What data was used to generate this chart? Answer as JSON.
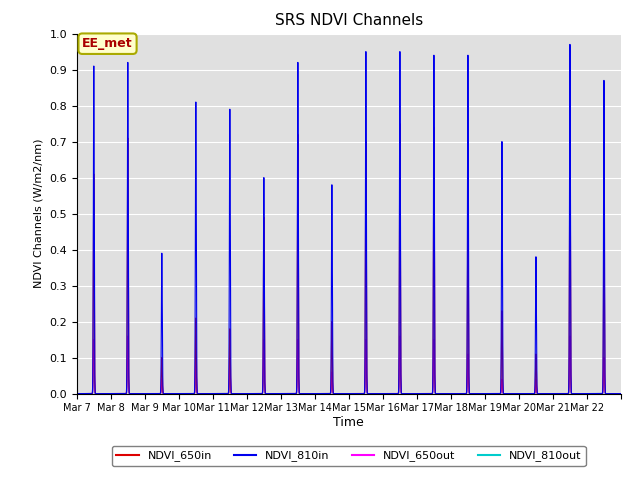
{
  "title": "SRS NDVI Channels",
  "ylabel": "NDVI Channels (W/m2/nm)",
  "xlabel": "Time",
  "ylim": [
    0.0,
    1.0
  ],
  "annotation_text": "EE_met",
  "background_color": "#e0e0e0",
  "series_colors": {
    "NDVI_650in": "#dd0000",
    "NDVI_810in": "#0000ee",
    "NDVI_650out": "#ff00ff",
    "NDVI_810out": "#00cccc"
  },
  "xtick_labels": [
    "Mar 7",
    "Mar 8",
    "Mar 9",
    "Mar 10",
    "Mar 11",
    "Mar 12",
    "Mar 13",
    "Mar 14",
    "Mar 15",
    "Mar 16",
    "Mar 17",
    "Mar 18",
    "Mar 19",
    "Mar 20",
    "Mar 21",
    "Mar 22"
  ],
  "num_days": 16,
  "daily_peaks_810in": [
    0.91,
    0.92,
    0.39,
    0.81,
    0.79,
    0.6,
    0.92,
    0.58,
    0.95,
    0.95,
    0.94,
    0.94,
    0.7,
    0.38,
    0.97,
    0.87
  ],
  "daily_peaks_650in": [
    0.61,
    0.71,
    0.1,
    0.21,
    0.18,
    0.49,
    0.72,
    0.2,
    0.7,
    0.75,
    0.74,
    0.53,
    0.23,
    0.11,
    0.76,
    0.5
  ],
  "daily_peaks_650out": [
    0.15,
    0.16,
    0.04,
    0.1,
    0.1,
    0.15,
    0.15,
    0.06,
    0.15,
    0.16,
    0.15,
    0.11,
    0.04,
    0.04,
    0.16,
    0.1
  ],
  "daily_peaks_810out": [
    0.07,
    0.07,
    0.02,
    0.05,
    0.05,
    0.07,
    0.07,
    0.03,
    0.07,
    0.07,
    0.07,
    0.06,
    0.02,
    0.02,
    0.07,
    0.04
  ],
  "figsize": [
    6.4,
    4.8
  ],
  "dpi": 100
}
